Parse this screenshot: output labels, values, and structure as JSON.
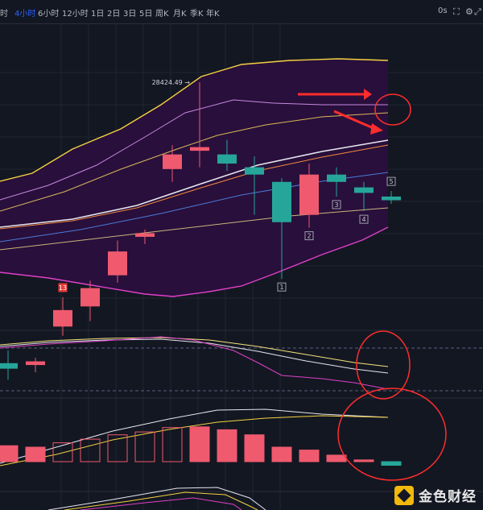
{
  "toolbar": {
    "timeframes": [
      "时",
      "4小时",
      "6小时",
      "12小时",
      "1日",
      "2日",
      "3日",
      "5日",
      "周K",
      "月K",
      "季K",
      "年K"
    ],
    "active": "4小时",
    "timer": "0s"
  },
  "colors": {
    "up": "#ef5a6f",
    "down": "#26a69a",
    "bollinger_fill": "#2a0f3d",
    "annotation_red": "#ff2d2d",
    "upper_band": "#f5d142",
    "lower_band": "#e040c8",
    "ma_white": "#e6e6f0",
    "ma_orange": "#f28a3c",
    "ma_blue": "#4a7bd8",
    "ma_tan": "#c9b57a"
  },
  "chart_data": {
    "type": "candlestick",
    "price_label": "28424.49",
    "candles": [
      {
        "o": 26890,
        "h": 26960,
        "l": 26800,
        "c": 26860,
        "dir": "down"
      },
      {
        "o": 26880,
        "h": 26920,
        "l": 26840,
        "c": 26900,
        "dir": "up"
      },
      {
        "o": 27090,
        "h": 27250,
        "l": 27040,
        "c": 27180,
        "dir": "up"
      },
      {
        "o": 27200,
        "h": 27340,
        "l": 27120,
        "c": 27300,
        "dir": "up"
      },
      {
        "o": 27370,
        "h": 27560,
        "l": 27330,
        "c": 27500,
        "dir": "up"
      },
      {
        "o": 27580,
        "h": 27620,
        "l": 27540,
        "c": 27600,
        "dir": "up"
      },
      {
        "o": 27950,
        "h": 28080,
        "l": 27880,
        "c": 28030,
        "dir": "up"
      },
      {
        "o": 28050,
        "h": 28424.49,
        "l": 27960,
        "c": 28070,
        "dir": "up"
      },
      {
        "o": 28030,
        "h": 28110,
        "l": 27940,
        "c": 27980,
        "dir": "down"
      },
      {
        "o": 27960,
        "h": 28020,
        "l": 27700,
        "c": 27920,
        "dir": "down"
      },
      {
        "o": 27880,
        "h": 27900,
        "l": 27350,
        "c": 27660,
        "dir": "down"
      },
      {
        "o": 27700,
        "h": 27980,
        "l": 27630,
        "c": 27920,
        "dir": "up"
      },
      {
        "o": 27920,
        "h": 27960,
        "l": 27800,
        "c": 27880,
        "dir": "down"
      },
      {
        "o": 27850,
        "h": 27880,
        "l": 27720,
        "c": 27820,
        "dir": "down"
      },
      {
        "o": 27800,
        "h": 27830,
        "l": 27760,
        "c": 27780,
        "dir": "down"
      }
    ],
    "markers": [
      {
        "index": 2,
        "label": "13",
        "pos": "above"
      },
      {
        "index": 10,
        "label": "1",
        "pos": "below"
      },
      {
        "index": 11,
        "label": "2",
        "pos": "below"
      },
      {
        "index": 12,
        "label": "3",
        "pos": "below"
      },
      {
        "index": 13,
        "label": "4",
        "pos": "below"
      },
      {
        "index": 14,
        "label": "5",
        "pos": "above"
      }
    ],
    "macd_histogram": [
      -1.1,
      -1.0,
      -1.3,
      -1.55,
      -1.85,
      -2.05,
      -2.35,
      -2.4,
      -2.2,
      -1.85,
      -1.0,
      -0.8,
      -0.45,
      -0.12,
      0.25
    ]
  },
  "branding": {
    "logo_text": "金色财经"
  }
}
